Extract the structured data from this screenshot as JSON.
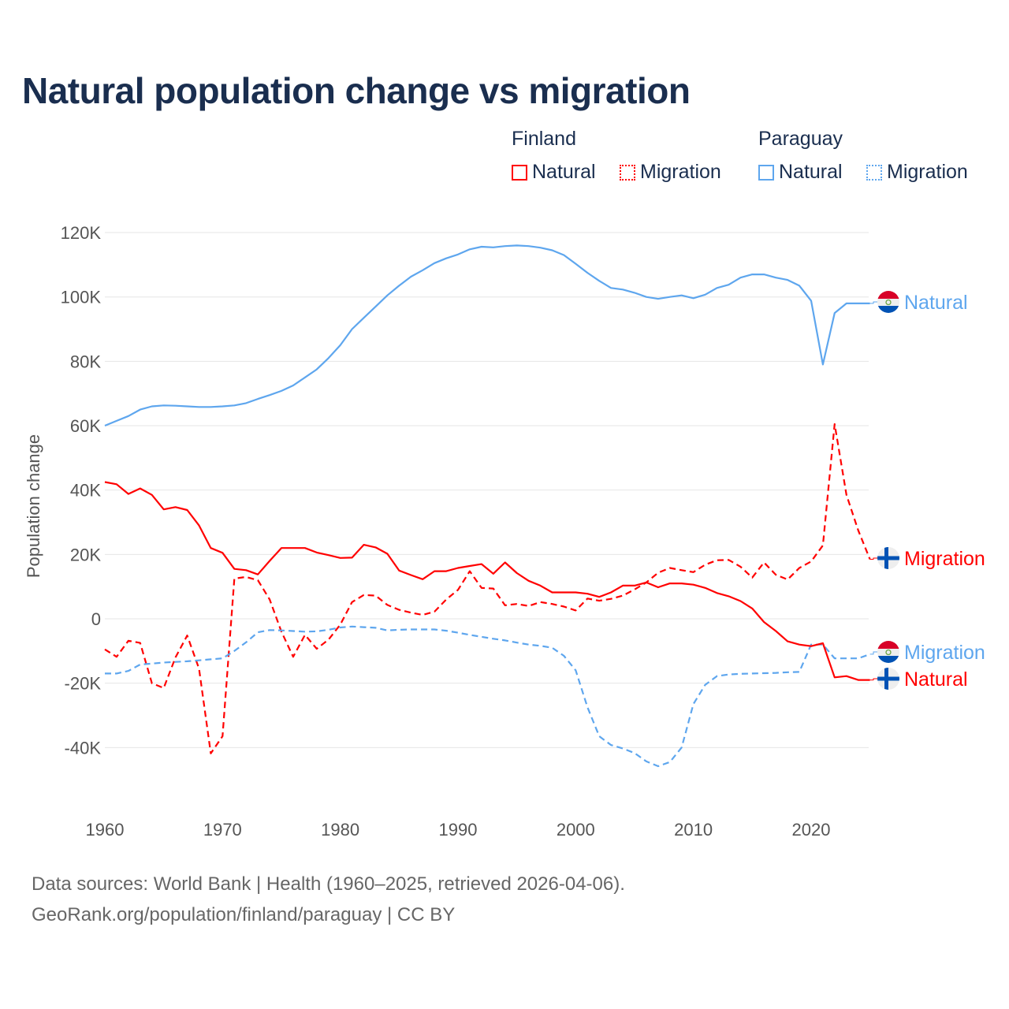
{
  "title": "Natural population change vs migration",
  "legend": {
    "groups": [
      {
        "name": "Finland",
        "color": "#ff0000",
        "items": [
          "Natural",
          "Migration"
        ]
      },
      {
        "name": "Paraguay",
        "color": "#5ea6ee",
        "items": [
          "Natural",
          "Migration"
        ]
      }
    ]
  },
  "source_lines": [
    "Data sources: World Bank | Health (1960–2025, retrieved 2026-04-06).",
    "GeoRank.org/population/finland/paraguay | CC BY"
  ],
  "chart_data": {
    "type": "line",
    "title": "Natural population change vs migration",
    "xlabel": "",
    "ylabel": "Population change",
    "xlim": [
      1960,
      2025
    ],
    "ylim": [
      -50000,
      120000
    ],
    "x_ticks": [
      1960,
      1970,
      1980,
      1990,
      2000,
      2010,
      2020
    ],
    "y_ticks": [
      {
        "v": 120000,
        "label": "120K"
      },
      {
        "v": 100000,
        "label": "100K"
      },
      {
        "v": 80000,
        "label": "80K"
      },
      {
        "v": 60000,
        "label": "60K"
      },
      {
        "v": 40000,
        "label": "40K"
      },
      {
        "v": 20000,
        "label": "20K"
      },
      {
        "v": 0,
        "label": "0"
      },
      {
        "v": -20000,
        "label": "-20K"
      },
      {
        "v": -40000,
        "label": "-40K"
      }
    ],
    "grid": true,
    "x_start": 1960,
    "series_unit": "thousands",
    "series": [
      {
        "name": "Paraguay Natural",
        "end_label": "Natural",
        "flag": "paraguay",
        "color": "#5ea6ee",
        "dash": false,
        "values": [
          60,
          61.5,
          63,
          65,
          66,
          66.3,
          66.2,
          66,
          65.8,
          65.8,
          66,
          66.3,
          67,
          68.3,
          69.5,
          70.8,
          72.5,
          75,
          77.5,
          81,
          85,
          90,
          93.5,
          97,
          100.5,
          103.5,
          106.3,
          108.3,
          110.5,
          112,
          113.2,
          114.8,
          115.6,
          115.4,
          115.8,
          116,
          115.8,
          115.3,
          114.5,
          113,
          110.3,
          107.5,
          105,
          102.8,
          102.3,
          101.3,
          100,
          99.4,
          100,
          100.5,
          99.6,
          100.7,
          102.8,
          103.8,
          106,
          107,
          107,
          106,
          105.3,
          103.5,
          98.8,
          79,
          95,
          98,
          98,
          98
        ]
      },
      {
        "name": "Finland Migration",
        "end_label": "Migration",
        "flag": "finland",
        "color": "#ff0000",
        "dash": true,
        "values": [
          -9.5,
          -11.8,
          -6.8,
          -7.5,
          -20,
          -21.5,
          -12,
          -5.2,
          -15.5,
          -41.8,
          -36.5,
          12.5,
          13,
          12,
          6,
          -4,
          -11.8,
          -5,
          -9.3,
          -6.5,
          -1.8,
          5.2,
          7.4,
          7.2,
          4.3,
          2.8,
          1.9,
          1.2,
          2.2,
          6,
          9,
          14.8,
          9.6,
          9.4,
          4.2,
          4.6,
          4,
          5.2,
          4.6,
          3.8,
          2.6,
          6.3,
          5.6,
          6.2,
          7.2,
          9.1,
          11.3,
          14.3,
          15.8,
          15.1,
          14.5,
          16.8,
          18.2,
          18.3,
          16.2,
          12.8,
          17.5,
          13.7,
          12.2,
          15.8,
          17.8,
          22.8,
          60.5,
          38.5,
          27.5,
          18.5
        ]
      },
      {
        "name": "Paraguay Migration",
        "end_label": "Migration",
        "flag": "paraguay",
        "color": "#5ea6ee",
        "dash": true,
        "values": [
          -17,
          -17,
          -16.2,
          -14.2,
          -13.9,
          -13.6,
          -13.4,
          -13.2,
          -12.9,
          -12.6,
          -12.3,
          -10,
          -7.3,
          -4.2,
          -3.5,
          -3.6,
          -3.8,
          -4,
          -3.9,
          -3.4,
          -2.7,
          -2.4,
          -2.6,
          -2.8,
          -3.6,
          -3.4,
          -3.3,
          -3.3,
          -3.3,
          -3.7,
          -4.3,
          -5,
          -5.6,
          -6.2,
          -6.7,
          -7.4,
          -8,
          -8.4,
          -9,
          -11.5,
          -16,
          -27.5,
          -36.5,
          -39.2,
          -40.3,
          -41.7,
          -44.3,
          -45.8,
          -44.5,
          -40,
          -26.5,
          -20.5,
          -17.8,
          -17.3,
          -17.1,
          -17,
          -16.9,
          -16.8,
          -16.6,
          -16.5,
          -8,
          -8,
          -12.3,
          -12.3,
          -12.3,
          -11
        ]
      },
      {
        "name": "Finland Natural",
        "end_label": "Natural",
        "flag": "finland",
        "color": "#ff0000",
        "dash": false,
        "values": [
          42.5,
          41.8,
          38.8,
          40.5,
          38.5,
          34,
          34.7,
          33.8,
          29,
          22,
          20.5,
          15.5,
          15.1,
          13.8,
          18,
          22,
          22,
          22,
          20.6,
          19.8,
          18.9,
          19,
          23,
          22.2,
          20.2,
          15,
          13.6,
          12.3,
          14.8,
          14.8,
          15.8,
          16.4,
          17,
          14,
          17.5,
          14.2,
          11.8,
          10.3,
          8.2,
          8.2,
          8.2,
          7.8,
          6.8,
          8.2,
          10.3,
          10.3,
          11.3,
          9.8,
          11,
          11,
          10.6,
          9.6,
          8,
          7,
          5.5,
          3.2,
          -1,
          -3.8,
          -7,
          -8,
          -8.5,
          -7.6,
          -18.2,
          -17.8,
          -19,
          -19
        ]
      }
    ]
  }
}
